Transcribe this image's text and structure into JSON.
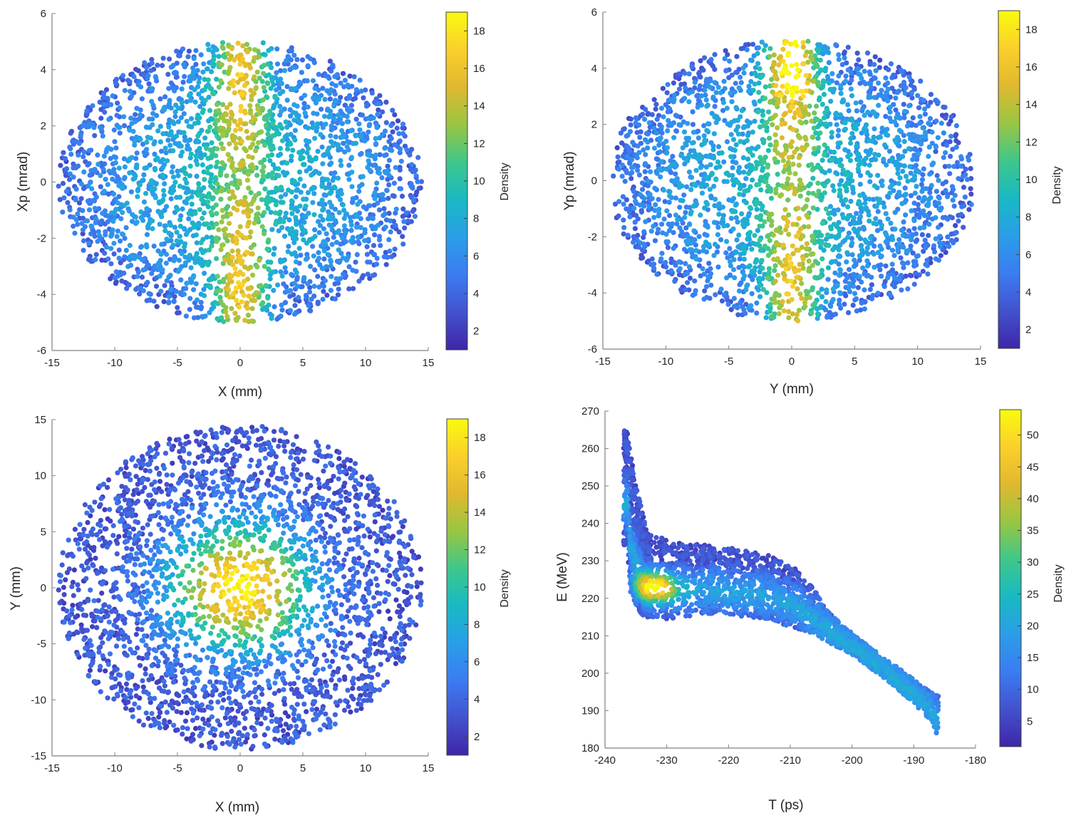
{
  "colormap": [
    "#3e26a8",
    "#4352ce",
    "#3b7cf2",
    "#2a9ee8",
    "#19b9c3",
    "#3ec78a",
    "#99c642",
    "#e0b82f",
    "#fbcf2b",
    "#f9fb0e"
  ],
  "chart_data": [
    {
      "type": "scatter",
      "id": "x-xp",
      "title": "",
      "xlabel": "X (mm)",
      "ylabel": "Xp (mrad)",
      "xlim": [
        -15,
        15
      ],
      "ylim": [
        -6,
        6
      ],
      "xticks": [
        -15,
        -10,
        -5,
        0,
        5,
        10,
        15
      ],
      "xtick_labels": [
        "-15",
        "-10",
        "-5",
        "0",
        "5",
        "10",
        "15"
      ],
      "yticks": [
        -6,
        -4,
        -2,
        0,
        2,
        4,
        6
      ],
      "ytick_labels": [
        "-6",
        "-4",
        "-2",
        "0",
        "2",
        "4",
        "6"
      ],
      "colorbar": {
        "label": "Density",
        "range": [
          1,
          19
        ],
        "ticks": [
          2,
          4,
          6,
          8,
          10,
          12,
          14,
          16,
          18
        ],
        "tick_labels": [
          "2",
          "4",
          "6",
          "8",
          "10",
          "12",
          "14",
          "16",
          "18"
        ]
      },
      "distribution": {
        "shape": "ellipse",
        "x_center": 0,
        "y_center": 0,
        "x_half_width": 14.5,
        "y_half_width": 5.0,
        "max_density": 19,
        "dense_feature": "vertical band near X=0, strongest near Xp=+3.5 and Xp=-4"
      }
    },
    {
      "type": "scatter",
      "id": "y-yp",
      "title": "",
      "xlabel": "Y (mm)",
      "ylabel": "Yp (mrad)",
      "xlim": [
        -15,
        15
      ],
      "ylim": [
        -6,
        6
      ],
      "xticks": [
        -15,
        -10,
        -5,
        0,
        5,
        10,
        15
      ],
      "xtick_labels": [
        "-15",
        "-10",
        "-5",
        "0",
        "5",
        "10",
        "15"
      ],
      "yticks": [
        -6,
        -4,
        -2,
        0,
        2,
        4,
        6
      ],
      "ytick_labels": [
        "-6",
        "-4",
        "-2",
        "0",
        "2",
        "4",
        "6"
      ],
      "colorbar": {
        "label": "Density",
        "range": [
          1,
          19
        ],
        "ticks": [
          2,
          4,
          6,
          8,
          10,
          12,
          14,
          16,
          18
        ],
        "tick_labels": [
          "2",
          "4",
          "6",
          "8",
          "10",
          "12",
          "14",
          "16",
          "18"
        ]
      },
      "distribution": {
        "shape": "ellipse",
        "x_center": 0,
        "y_center": 0,
        "x_half_width": 14.5,
        "y_half_width": 5.0,
        "max_density": 19,
        "dense_feature": "vertical band near Y=0, strongest near Yp=+4.5"
      }
    },
    {
      "type": "scatter",
      "id": "x-y",
      "title": "",
      "xlabel": "X (mm)",
      "ylabel": "Y (mm)",
      "xlim": [
        -15,
        15
      ],
      "ylim": [
        -15,
        15
      ],
      "xticks": [
        -15,
        -10,
        -5,
        0,
        5,
        10,
        15
      ],
      "xtick_labels": [
        "-15",
        "-10",
        "-5",
        "0",
        "5",
        "10",
        "15"
      ],
      "yticks": [
        -15,
        -10,
        -5,
        0,
        5,
        10,
        15
      ],
      "ytick_labels": [
        "-15",
        "-10",
        "-5",
        "0",
        "5",
        "10",
        "15"
      ],
      "colorbar": {
        "label": "Density",
        "range": [
          1,
          19
        ],
        "ticks": [
          2,
          4,
          6,
          8,
          10,
          12,
          14,
          16,
          18
        ],
        "tick_labels": [
          "2",
          "4",
          "6",
          "8",
          "10",
          "12",
          "14",
          "16",
          "18"
        ]
      },
      "distribution": {
        "shape": "disk",
        "x_center": 0,
        "y_center": 0,
        "radius": 14.5,
        "max_density": 19,
        "dense_feature": "peak at center (0,0)"
      }
    },
    {
      "type": "scatter",
      "id": "t-e",
      "title": "",
      "xlabel": "T (ps)",
      "ylabel": "E (MeV)",
      "xlim": [
        -240,
        -180
      ],
      "ylim": [
        180,
        270
      ],
      "xticks": [
        -240,
        -230,
        -220,
        -210,
        -200,
        -190,
        -180
      ],
      "xtick_labels": [
        "-240",
        "-230",
        "-220",
        "-210",
        "-200",
        "-190",
        "-180"
      ],
      "yticks": [
        180,
        190,
        200,
        210,
        220,
        230,
        240,
        250,
        260,
        270
      ],
      "ytick_labels": [
        "180",
        "190",
        "200",
        "210",
        "220",
        "230",
        "240",
        "250",
        "260",
        "270"
      ],
      "colorbar": {
        "label": "Density",
        "range": [
          1,
          54
        ],
        "ticks": [
          5,
          10,
          15,
          20,
          25,
          30,
          35,
          40,
          45,
          50
        ],
        "tick_labels": [
          "5",
          "10",
          "15",
          "20",
          "25",
          "30",
          "35",
          "40",
          "45",
          "50"
        ]
      },
      "distribution": {
        "shape": "curved band",
        "upper_edge": [
          [
            -236.5,
            265
          ],
          [
            -235,
            250
          ],
          [
            -233,
            237
          ],
          [
            -228,
            235
          ],
          [
            -220,
            233.5
          ],
          [
            -214,
            232
          ],
          [
            -209,
            228
          ],
          [
            -206,
            222
          ],
          [
            -203,
            215
          ],
          [
            -198,
            208
          ],
          [
            -193,
            202
          ],
          [
            -189,
            197
          ],
          [
            -186,
            194
          ]
        ],
        "lower_edge": [
          [
            -236.5,
            258
          ],
          [
            -236.5,
            235
          ],
          [
            -236,
            222
          ],
          [
            -234,
            215
          ],
          [
            -230,
            214.5
          ],
          [
            -222,
            216
          ],
          [
            -214,
            214.5
          ],
          [
            -207,
            211
          ],
          [
            -200,
            205
          ],
          [
            -195,
            199
          ],
          [
            -190,
            192
          ],
          [
            -187,
            187
          ],
          [
            -186,
            182
          ]
        ],
        "max_density": 54,
        "dense_feature": "hot spot near T=-232, E=223"
      }
    }
  ]
}
